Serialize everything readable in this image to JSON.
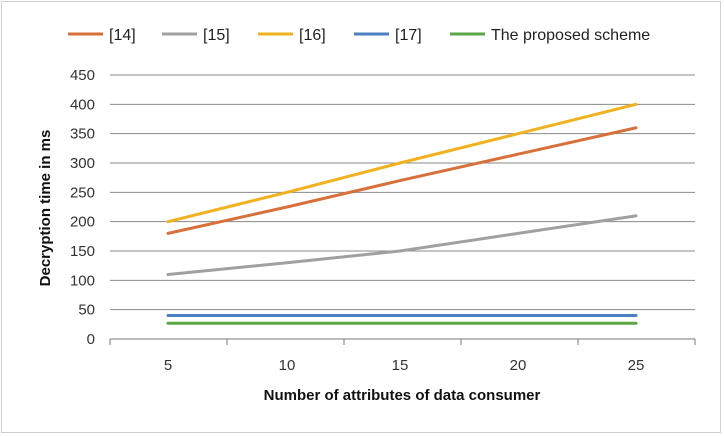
{
  "chart_data": {
    "type": "line",
    "title": "",
    "xlabel": "Number of attributes  of data consumer",
    "ylabel": "Decryption time in ms",
    "x": [
      5,
      10,
      15,
      20,
      25
    ],
    "x_ticks": [
      "5",
      "10",
      "15",
      "20",
      "25"
    ],
    "ylim": [
      0,
      450
    ],
    "y_ticks": [
      "0",
      "50",
      "100",
      "150",
      "200",
      "250",
      "300",
      "350",
      "400",
      "450"
    ],
    "y_tick_values": [
      0,
      50,
      100,
      150,
      200,
      250,
      300,
      350,
      400,
      450
    ],
    "grid": true,
    "legend_position": "top",
    "series": [
      {
        "name": "[14]",
        "color": "#d7703a",
        "values": [
          180,
          225,
          270,
          315,
          360
        ]
      },
      {
        "name": "[15]",
        "color": "#a0a0a0",
        "values": [
          110,
          130,
          150,
          180,
          210
        ]
      },
      {
        "name": "[16]",
        "color": "#f0b220",
        "values": [
          200,
          250,
          300,
          350,
          400
        ]
      },
      {
        "name": "[17]",
        "color": "#4a7fc0",
        "values": [
          40,
          40,
          40,
          40,
          40
        ]
      },
      {
        "name": "The proposed scheme",
        "color": "#5aa646",
        "values": [
          27,
          27,
          27,
          27,
          27
        ]
      }
    ]
  }
}
